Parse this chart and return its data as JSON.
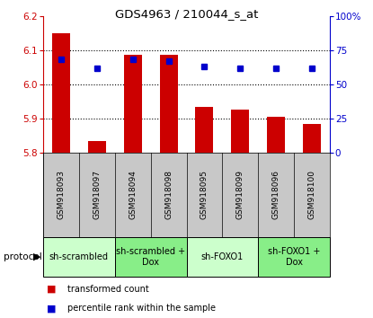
{
  "title": "GDS4963 / 210044_s_at",
  "samples": [
    "GSM918093",
    "GSM918097",
    "GSM918094",
    "GSM918098",
    "GSM918095",
    "GSM918099",
    "GSM918096",
    "GSM918100"
  ],
  "transformed_count": [
    6.15,
    5.835,
    6.085,
    6.085,
    5.935,
    5.925,
    5.905,
    5.885
  ],
  "percentile_rank": [
    68,
    62,
    68,
    67,
    63,
    62,
    62,
    62
  ],
  "bar_bottom": 5.8,
  "ylim_left": [
    5.8,
    6.2
  ],
  "ylim_right": [
    0,
    100
  ],
  "yticks_left": [
    5.8,
    5.9,
    6.0,
    6.1,
    6.2
  ],
  "yticks_right": [
    0,
    25,
    50,
    75,
    100
  ],
  "ytick_labels_right": [
    "0",
    "25",
    "50",
    "75",
    "100%"
  ],
  "bar_color": "#cc0000",
  "dot_color": "#0000cc",
  "gridline_color": "#000000",
  "protocol_groups": [
    {
      "label": "sh-scrambled",
      "start": 0,
      "end": 2,
      "color": "#ccffcc"
    },
    {
      "label": "sh-scrambled +\nDox",
      "start": 2,
      "end": 4,
      "color": "#88ee88"
    },
    {
      "label": "sh-FOXO1",
      "start": 4,
      "end": 6,
      "color": "#ccffcc"
    },
    {
      "label": "sh-FOXO1 +\nDox",
      "start": 6,
      "end": 8,
      "color": "#88ee88"
    }
  ],
  "ylabel_left_color": "#cc0000",
  "ylabel_right_color": "#0000cc",
  "legend_red_label": "transformed count",
  "legend_blue_label": "percentile rank within the sample",
  "protocol_label": "protocol",
  "bg_color": "#ffffff",
  "sample_bg_color": "#c8c8c8"
}
